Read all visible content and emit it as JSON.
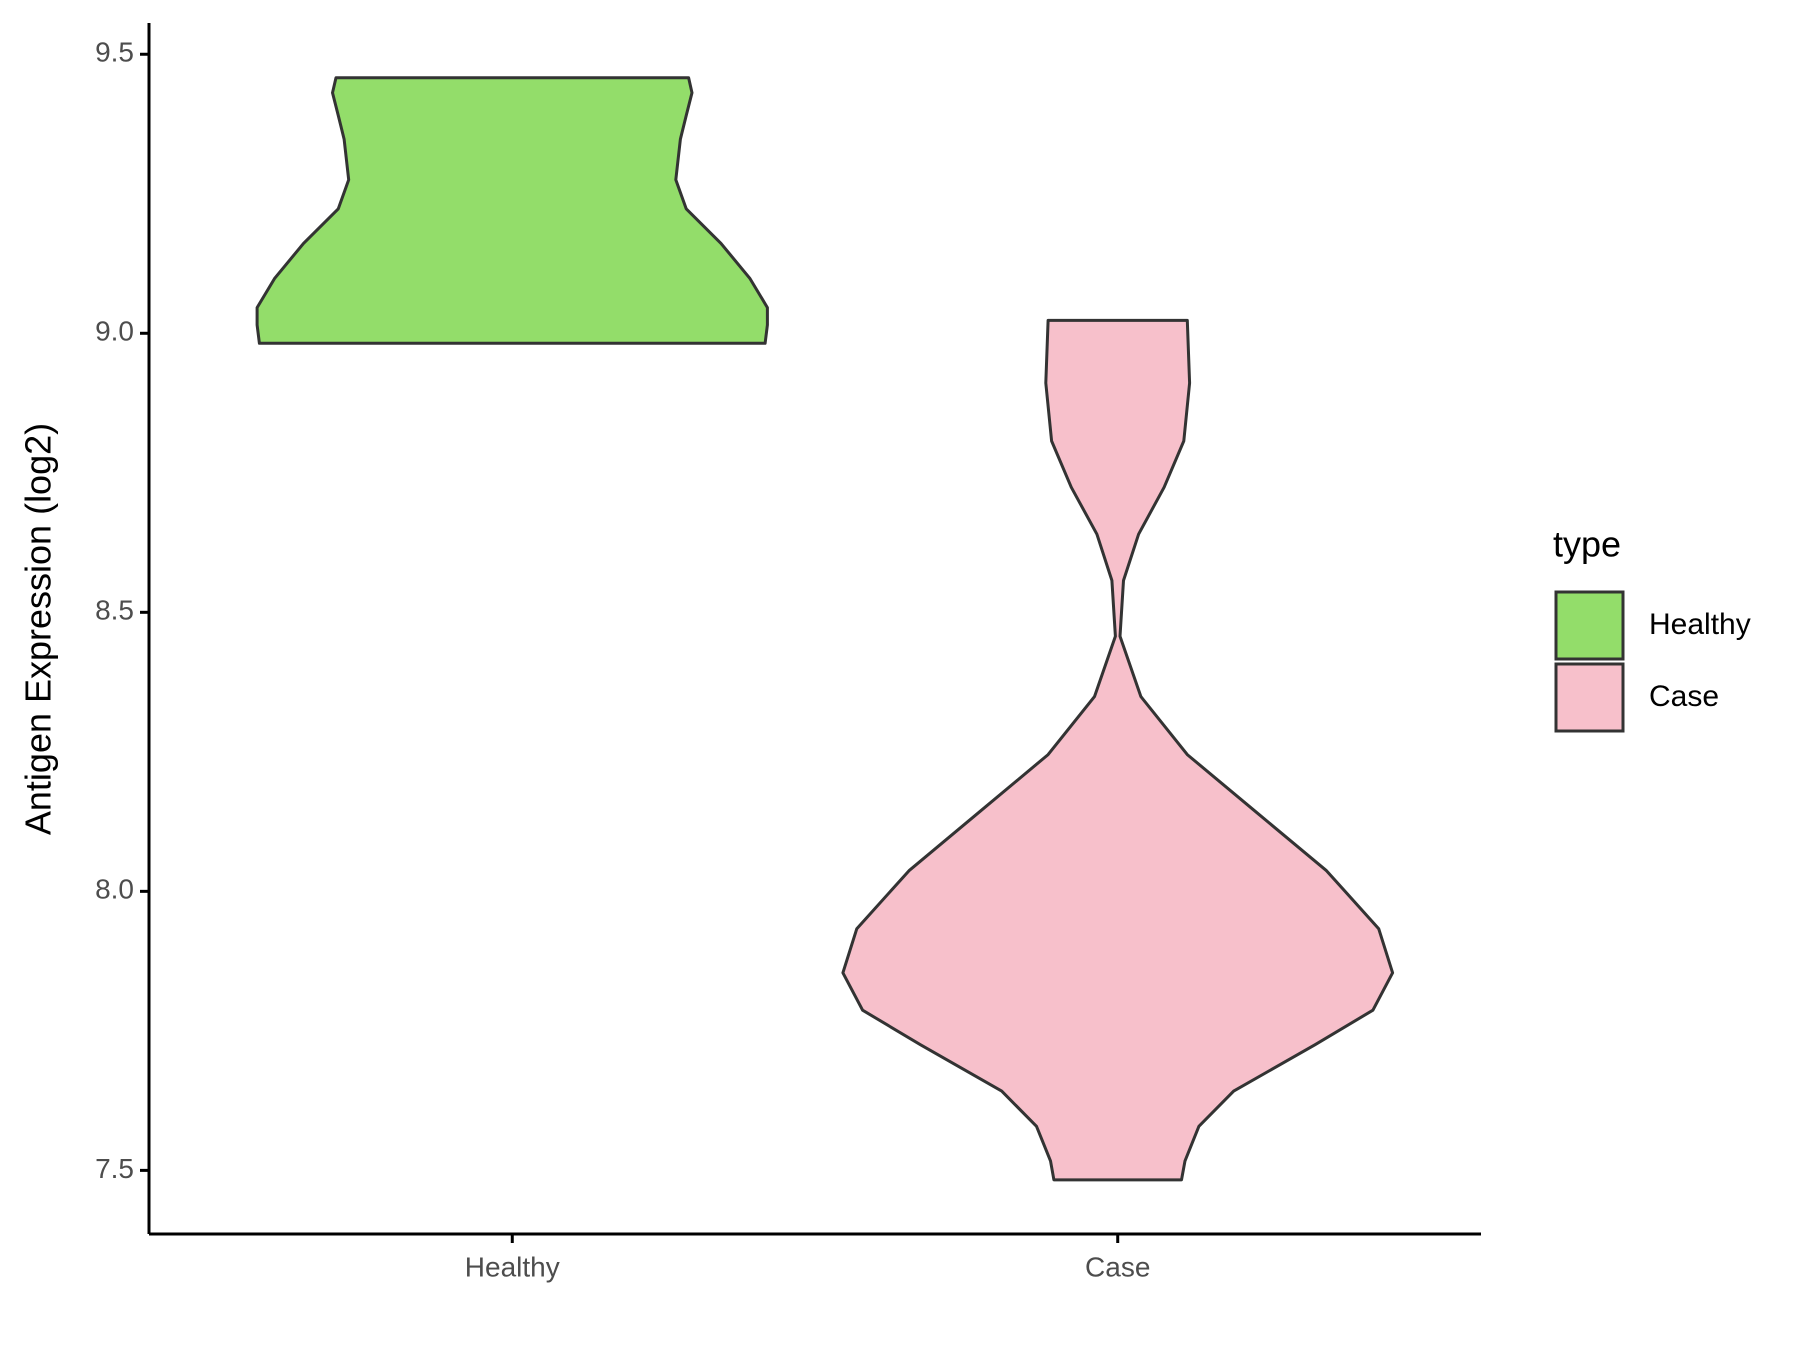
{
  "chart_data": {
    "type": "violin",
    "y_label": "Antigen Expression (log2)",
    "categories": [
      "Healthy",
      "Case"
    ],
    "legend_title": "type",
    "ylim": [
      7.386,
      9.556
    ],
    "yticks": [
      {
        "value": 7.5,
        "label": "7.5"
      },
      {
        "value": 8,
        "label": "8.0"
      },
      {
        "value": 8.5,
        "label": "8.5"
      },
      {
        "value": 9,
        "label": "9.0"
      },
      {
        "value": 9.5,
        "label": "9.5"
      }
    ],
    "series": [
      {
        "name": "Healthy",
        "color": "#93dd6a",
        "y": [
          9.458,
          9.431,
          9.39,
          9.348,
          9.275,
          9.223,
          9.161,
          9.098,
          9.046,
          9.015,
          8.982
        ],
        "density": [
          152,
          155,
          150,
          145,
          141,
          150,
          180,
          205,
          220,
          220,
          218
        ]
      },
      {
        "name": "Case",
        "color": "#f7c0cb",
        "y": [
          9.023,
          8.911,
          8.807,
          8.724,
          8.64,
          8.557,
          8.457,
          8.349,
          8.245,
          8.141,
          8.037,
          7.933,
          7.854,
          7.787,
          7.725,
          7.642,
          7.579,
          7.517,
          7.483
        ],
        "density": [
          60,
          62,
          57,
          40,
          18,
          5,
          2,
          20,
          60,
          120,
          180,
          225,
          237,
          220,
          170,
          100,
          70,
          58,
          55
        ]
      }
    ]
  }
}
